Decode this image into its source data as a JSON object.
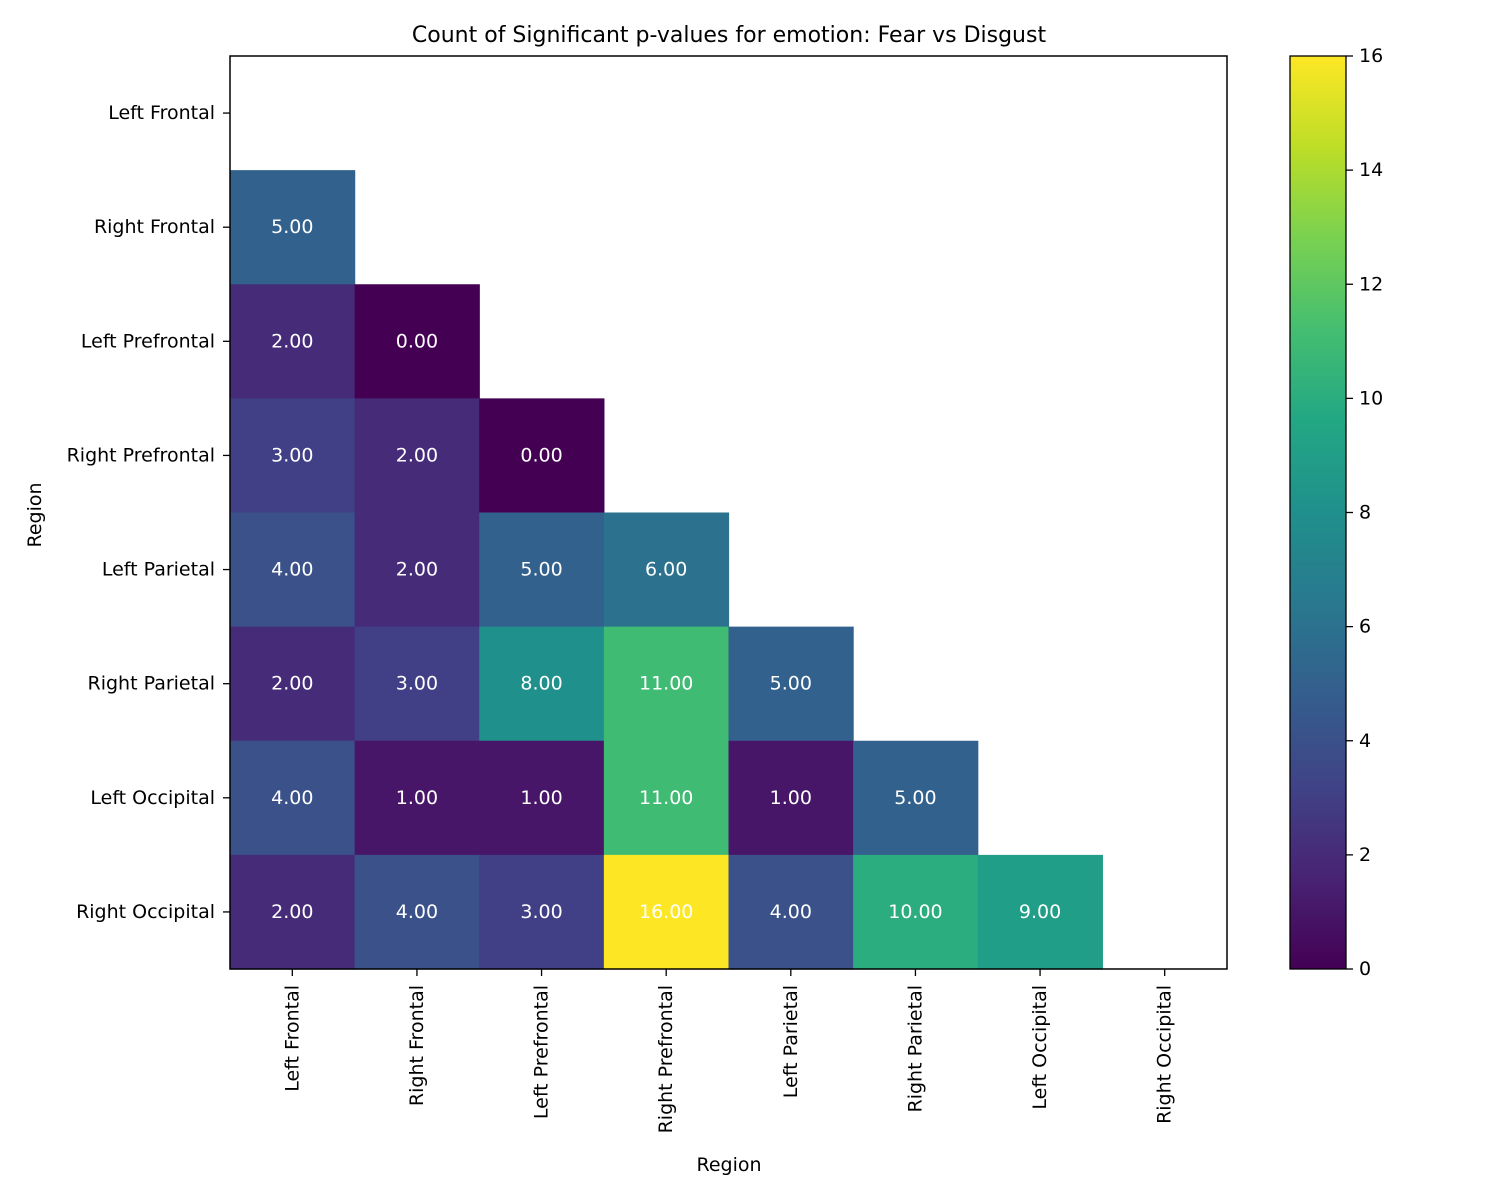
{
  "chart_data": {
    "type": "heatmap",
    "title": "Count of Significant p-values for emotion: Fear vs Disgust",
    "xlabel": "Region",
    "ylabel": "Region",
    "x_categories": [
      "Left Frontal",
      "Right Frontal",
      "Left Prefrontal",
      "Right Prefrontal",
      "Left Parietal",
      "Right Parietal",
      "Left Occipital",
      "Right Occipital"
    ],
    "y_categories": [
      "Left Frontal",
      "Right Frontal",
      "Left Prefrontal",
      "Right Prefrontal",
      "Left Parietal",
      "Right Parietal",
      "Left Occipital",
      "Right Occipital"
    ],
    "values": [
      [
        null,
        null,
        null,
        null,
        null,
        null,
        null,
        null
      ],
      [
        5,
        null,
        null,
        null,
        null,
        null,
        null,
        null
      ],
      [
        2,
        0,
        null,
        null,
        null,
        null,
        null,
        null
      ],
      [
        3,
        2,
        0,
        null,
        null,
        null,
        null,
        null
      ],
      [
        4,
        2,
        5,
        6,
        null,
        null,
        null,
        null
      ],
      [
        2,
        3,
        8,
        11,
        5,
        null,
        null,
        null
      ],
      [
        4,
        1,
        1,
        11,
        1,
        5,
        null,
        null
      ],
      [
        2,
        4,
        3,
        16,
        4,
        10,
        9,
        null
      ]
    ],
    "value_format": "0.00",
    "colormap": "viridis",
    "colorbar": {
      "range": [
        0,
        16
      ],
      "ticks": [
        0,
        2,
        4,
        6,
        8,
        10,
        12,
        14,
        16
      ]
    },
    "grid": false
  }
}
